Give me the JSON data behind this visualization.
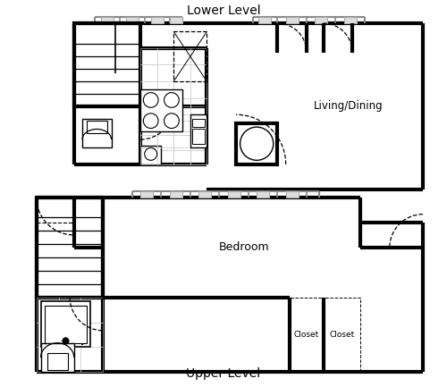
{
  "title_top": "Lower Level",
  "title_bottom": "Upper Level",
  "label_living": "Living/Dining",
  "label_bedroom": "Bedroom",
  "label_closet1": "Closet",
  "label_closet2": "Closet",
  "bg_color": "#ffffff",
  "wall_color": "#000000",
  "wall_lw": 3.0,
  "figsize": [
    5.0,
    4.33
  ],
  "dpi": 100
}
